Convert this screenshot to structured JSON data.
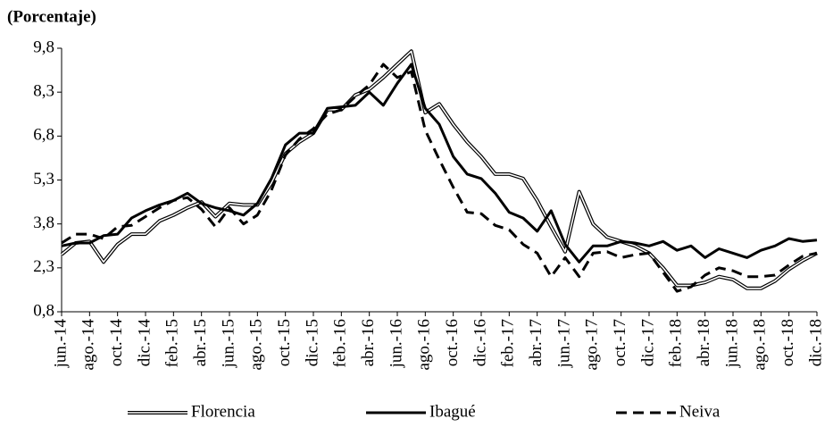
{
  "chart_data": {
    "type": "line",
    "title": "(Porcentaje)",
    "categories": [
      "jun.-14",
      null,
      "ago.-14",
      null,
      "oct.-14",
      null,
      "dic.-14",
      null,
      "feb.-15",
      null,
      "abr.-15",
      null,
      "jun.-15",
      null,
      "ago.-15",
      null,
      "oct.-15",
      null,
      "dic.-15",
      null,
      "feb.-16",
      null,
      "abr.-16",
      null,
      "jun.-16",
      null,
      "ago.-16",
      null,
      "oct.-16",
      null,
      "dic.-16",
      null,
      "feb.-17",
      null,
      "abr.-17",
      null,
      "jun.-17",
      null,
      "ago.-17",
      null,
      "oct.-17",
      null,
      "dic.-17",
      null,
      "feb.-18",
      null,
      "abr.-18",
      null,
      "jun.-18",
      null,
      "ago.-18",
      null,
      "oct.-18",
      null,
      "dic.-18"
    ],
    "series": [
      {
        "name": "Florencia",
        "color": "#000000",
        "line_style": "double",
        "values": [
          2.76,
          3.15,
          3.2,
          2.5,
          3.1,
          3.45,
          3.45,
          3.9,
          4.1,
          4.35,
          4.55,
          4.05,
          4.5,
          4.45,
          4.45,
          5.2,
          6.2,
          6.6,
          6.9,
          7.7,
          7.7,
          8.2,
          8.4,
          8.8,
          9.25,
          9.7,
          7.6,
          7.9,
          7.2,
          6.6,
          6.1,
          5.5,
          5.5,
          5.35,
          4.6,
          3.7,
          2.85,
          4.9,
          3.8,
          3.35,
          3.2,
          3.05,
          2.8,
          2.3,
          1.7,
          1.7,
          1.8,
          2.0,
          1.9,
          1.6,
          1.6,
          1.85,
          2.25,
          2.55,
          2.8
        ]
      },
      {
        "name": "Ibagué",
        "color": "#000000",
        "line_style": "solid",
        "values": [
          3.05,
          3.15,
          3.15,
          3.4,
          3.45,
          4.0,
          4.25,
          4.45,
          4.6,
          4.85,
          4.5,
          4.35,
          4.25,
          4.1,
          4.5,
          5.35,
          6.5,
          6.9,
          6.9,
          7.75,
          7.8,
          7.85,
          8.3,
          7.85,
          8.6,
          9.25,
          7.75,
          7.2,
          6.1,
          5.5,
          5.35,
          4.85,
          4.2,
          4.0,
          3.55,
          4.25,
          3.1,
          2.5,
          3.05,
          3.05,
          3.2,
          3.15,
          3.05,
          3.2,
          2.9,
          3.05,
          2.65,
          2.95,
          2.8,
          2.65,
          2.9,
          3.05,
          3.3,
          3.2,
          3.25
        ]
      },
      {
        "name": "Neiva",
        "color": "#000000",
        "line_style": "dashed",
        "values": [
          3.15,
          3.45,
          3.45,
          3.3,
          3.7,
          3.75,
          4.05,
          4.35,
          4.6,
          4.7,
          4.3,
          3.7,
          4.35,
          3.8,
          4.1,
          4.95,
          6.15,
          6.7,
          7.05,
          7.55,
          7.7,
          8.15,
          8.55,
          9.25,
          8.8,
          9.0,
          7.0,
          6.0,
          5.05,
          4.2,
          4.15,
          3.75,
          3.6,
          3.1,
          2.8,
          2.0,
          2.65,
          2.0,
          2.8,
          2.85,
          2.65,
          2.75,
          2.8,
          2.15,
          1.5,
          1.65,
          2.05,
          2.3,
          2.2,
          2.0,
          2.0,
          2.05,
          2.4,
          2.7,
          2.8
        ]
      }
    ],
    "ylim": [
      0.8,
      9.8
    ],
    "yticks": [
      {
        "value": 0.8,
        "label": "0,8"
      },
      {
        "value": 2.3,
        "label": "2,3"
      },
      {
        "value": 3.8,
        "label": "3,8"
      },
      {
        "value": 5.3,
        "label": "5,3"
      },
      {
        "value": 6.8,
        "label": "6,8"
      },
      {
        "value": 8.3,
        "label": "8,3"
      },
      {
        "value": 9.8,
        "label": "9,8"
      }
    ],
    "grid": false
  }
}
